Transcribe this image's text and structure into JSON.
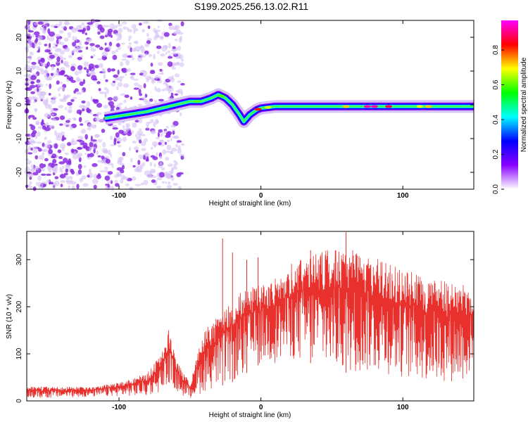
{
  "title": "S199.2025.256.13.02.R11",
  "chart_data": [
    {
      "type": "heatmap",
      "xlabel": "Height of straight line (km)",
      "ylabel": "Frequency (Hz)",
      "xlim": [
        -165,
        150
      ],
      "ylim": [
        -25,
        25
      ],
      "xticks": [
        -100,
        0,
        100
      ],
      "xticklabels": [
        "-100",
        "0",
        "100"
      ],
      "yticks": [
        -20,
        -10,
        0,
        10,
        20
      ],
      "yticklabels": [
        "-20",
        "-10",
        "0",
        "10",
        "20"
      ],
      "ridge": {
        "x": [
          -110,
          -95,
          -80,
          -70,
          -60,
          -50,
          -42,
          -35,
          -30,
          -25,
          -20,
          -15,
          -12,
          -8,
          -3,
          0,
          10,
          30,
          60,
          90,
          120,
          150
        ],
        "y": [
          -4,
          -3,
          -2,
          -1,
          0,
          1,
          1,
          2,
          3,
          2,
          0,
          -3,
          -5,
          -3,
          -1.5,
          -1,
          -0.5,
          -0.5,
          -0.5,
          -0.5,
          -0.5,
          -0.5
        ]
      },
      "noise_region_x": [
        -165,
        -55
      ],
      "colorbar": {
        "label": "Normalized spectral amplitude",
        "range": [
          0.0,
          0.97
        ],
        "ticks": [
          0.0,
          0.2,
          0.4,
          0.6,
          0.8
        ],
        "ticklabels": [
          "0.0",
          "0.2",
          "0.4",
          "0.6",
          "0.8"
        ],
        "colors": [
          "#ffffff",
          "#8800ff",
          "#0000ff",
          "#00ffff",
          "#00ff00",
          "#ffff00",
          "#ff0000",
          "#ff00ff"
        ]
      }
    },
    {
      "type": "line",
      "xlabel": "Height of straight line (km)",
      "ylabel": "SNR (10 * v/v)",
      "xlim": [
        -165,
        150
      ],
      "ylim": [
        0,
        360
      ],
      "xticks": [
        -100,
        0,
        100
      ],
      "xticklabels": [
        "-100",
        "0",
        "100"
      ],
      "yticks": [
        0,
        100,
        200,
        300
      ],
      "yticklabels": [
        "0",
        "100",
        "200",
        "300"
      ],
      "color": "#e8302c",
      "envelope": {
        "x": [
          -165,
          -120,
          -100,
          -80,
          -70,
          -65,
          -60,
          -55,
          -50,
          -45,
          -40,
          -30,
          -20,
          -10,
          0,
          10,
          20,
          30,
          40,
          60,
          80,
          100,
          120,
          140,
          150
        ],
        "upper": [
          30,
          30,
          40,
          60,
          100,
          150,
          90,
          60,
          40,
          100,
          150,
          180,
          220,
          240,
          250,
          260,
          290,
          310,
          320,
          325,
          305,
          280,
          260,
          250,
          245
        ],
        "lower": [
          5,
          8,
          10,
          10,
          20,
          40,
          20,
          10,
          5,
          10,
          20,
          30,
          40,
          60,
          80,
          80,
          90,
          80,
          80,
          60,
          60,
          50,
          40,
          40,
          50
        ]
      },
      "spikes": {
        "x": [
          -65,
          -27,
          -20,
          -10,
          -2,
          35,
          60
        ],
        "y": [
          150,
          345,
          315,
          300,
          305,
          320,
          358
        ]
      }
    }
  ]
}
